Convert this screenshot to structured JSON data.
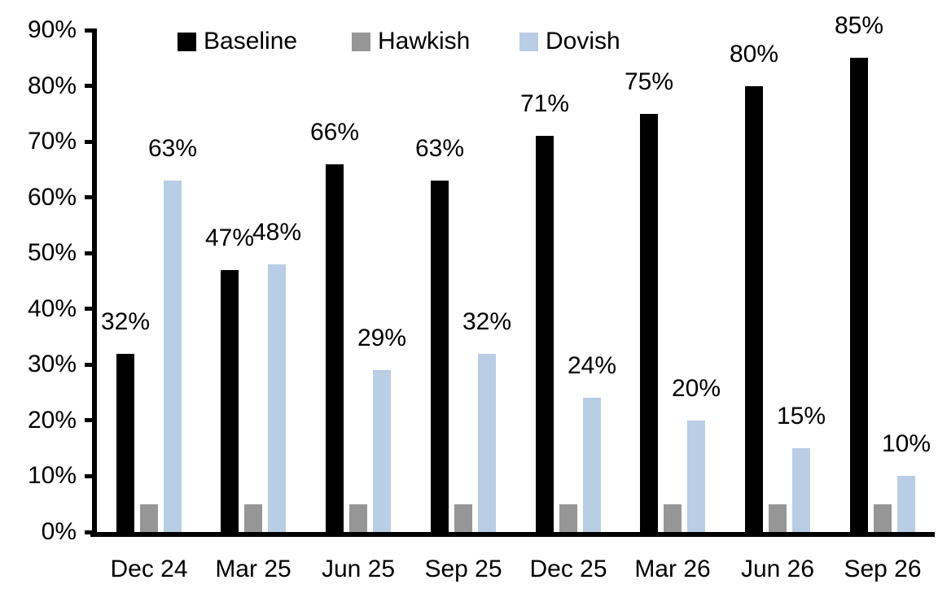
{
  "chart_data": {
    "type": "bar",
    "title": "",
    "categories": [
      "Dec 24",
      "Mar 25",
      "Jun 25",
      "Sep 25",
      "Dec 25",
      "Mar 26",
      "Jun 26",
      "Sep 26"
    ],
    "series": [
      {
        "name": "Baseline",
        "color": "#000000",
        "values": [
          32,
          47,
          66,
          63,
          71,
          75,
          80,
          85
        ],
        "data_labels": [
          "32%",
          "47%",
          "66%",
          "63%",
          "71%",
          "75%",
          "80%",
          "85%"
        ]
      },
      {
        "name": "Hawkish",
        "color": "#969696",
        "values": [
          5,
          5,
          5,
          5,
          5,
          5,
          5,
          5
        ],
        "data_labels": null
      },
      {
        "name": "Dovish",
        "color": "#b9cde5",
        "values": [
          63,
          48,
          29,
          32,
          24,
          20,
          15,
          10
        ],
        "data_labels": [
          "63%",
          "48%",
          "29%",
          "32%",
          "24%",
          "20%",
          "15%",
          "10%"
        ]
      }
    ],
    "y_axis": {
      "min": 0,
      "max": 90,
      "step": 10,
      "tick_labels": [
        "0%",
        "10%",
        "20%",
        "30%",
        "40%",
        "50%",
        "60%",
        "70%",
        "80%",
        "90%"
      ]
    },
    "x_axis": {
      "tick_labels": [
        "Dec 24",
        "Mar 25",
        "Jun 25",
        "Sep 25",
        "Dec 25",
        "Mar 26",
        "Jun 26",
        "Sep 26"
      ]
    },
    "legend": {
      "position": "top",
      "entries": [
        "Baseline",
        "Hawkish",
        "Dovish"
      ]
    },
    "grid": false,
    "colors": {
      "background": "#ffffff",
      "axis": "#000000",
      "text": "#000000"
    }
  }
}
